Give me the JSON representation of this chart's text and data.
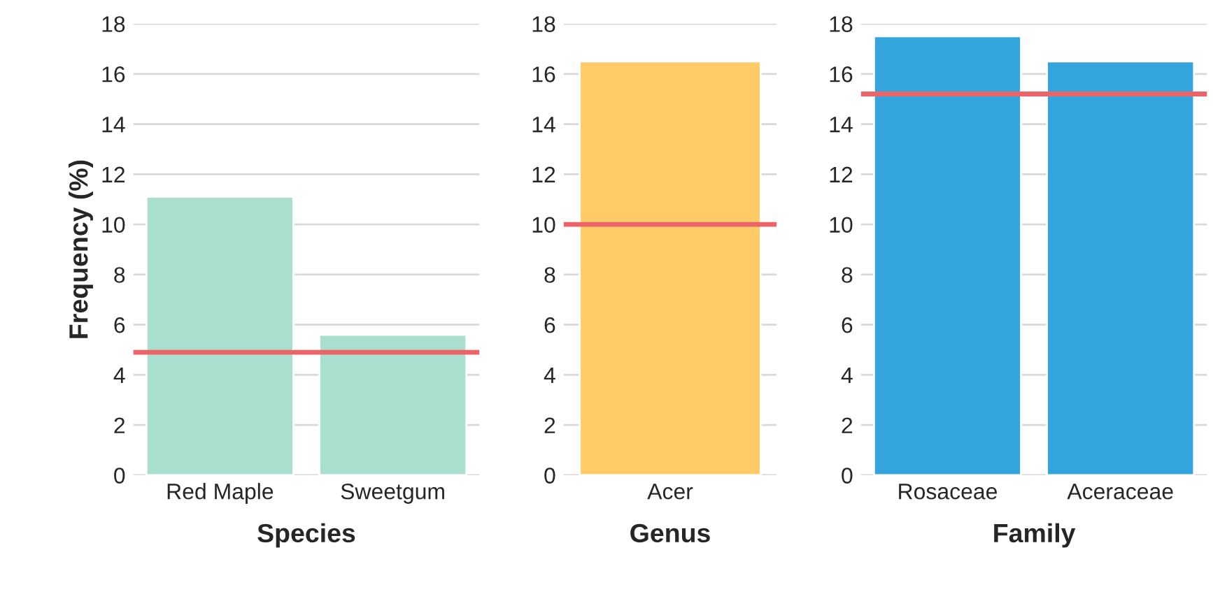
{
  "chart_data": [
    {
      "type": "bar",
      "xlabel": "Species",
      "ylabel": "Frequency (%)",
      "categories": [
        "Red Maple",
        "Sweetgum"
      ],
      "values": [
        11.1,
        5.6
      ],
      "color": "#aadfd0",
      "ylim": [
        0,
        18
      ],
      "yticks": [
        0,
        2,
        4,
        6,
        8,
        10,
        12,
        14,
        16,
        18
      ],
      "grid": "y",
      "ref_lines": [
        {
          "axis": "y",
          "value": 4.9,
          "color": "#ec6468"
        }
      ]
    },
    {
      "type": "bar",
      "xlabel": "Genus",
      "categories": [
        "Acer"
      ],
      "values": [
        16.5
      ],
      "color": "#fecb66",
      "ylim": [
        0,
        18
      ],
      "yticks": [
        0,
        2,
        4,
        6,
        8,
        10,
        12,
        14,
        16,
        18
      ],
      "grid": "y",
      "ref_lines": [
        {
          "axis": "y",
          "value": 10,
          "color": "#ec6468"
        }
      ]
    },
    {
      "type": "bar",
      "xlabel": "Family",
      "categories": [
        "Rosaceae",
        "Aceraceae"
      ],
      "values": [
        17.5,
        16.5
      ],
      "color": "#33a4dc",
      "ylim": [
        0,
        18
      ],
      "yticks": [
        0,
        2,
        4,
        6,
        8,
        10,
        12,
        14,
        16,
        18
      ],
      "grid": "y",
      "ref_lines": [
        {
          "axis": "y",
          "value": 15.2,
          "color": "#ec6468"
        }
      ]
    }
  ]
}
